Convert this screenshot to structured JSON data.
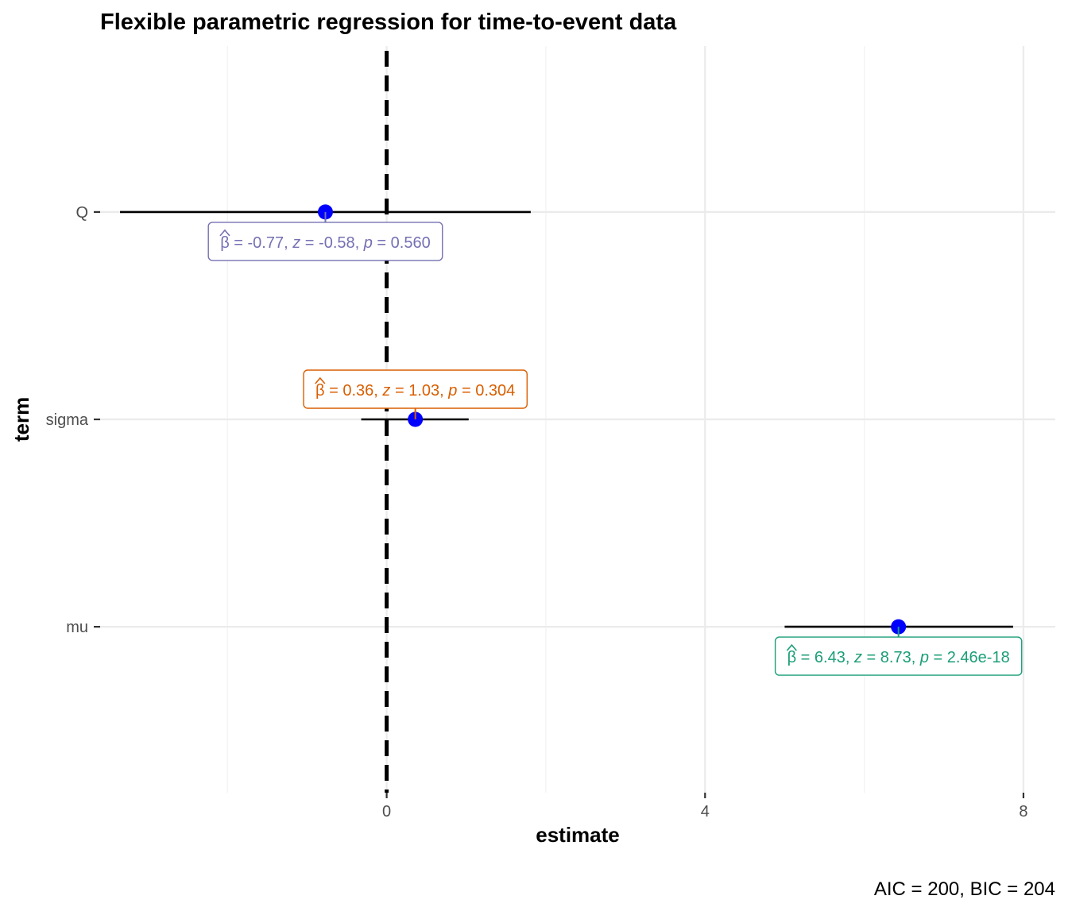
{
  "chart_data": {
    "type": "scatter",
    "title": "Flexible parametric regression for time-to-event data",
    "xlabel": "estimate",
    "ylabel": "term",
    "caption": "AIC = 200, BIC = 204",
    "xlim": [
      -3.6,
      8.4
    ],
    "x_ticks": [
      0,
      4,
      8
    ],
    "x_minor_ticks": [
      -2,
      2,
      6
    ],
    "reference_line": 0,
    "grid": true,
    "point_color": "#0000ff",
    "terms": [
      {
        "term": "mu",
        "estimate": 6.43,
        "conf_low": 5.0,
        "conf_high": 7.87,
        "label": {
          "beta": "6.43",
          "z": "8.73",
          "p": "2.46e-18",
          "color": "#1b9e77",
          "position": "below"
        }
      },
      {
        "term": "sigma",
        "estimate": 0.36,
        "conf_low": -0.32,
        "conf_high": 1.03,
        "label": {
          "beta": "0.36",
          "z": "1.03",
          "p": "0.304",
          "color": "#d95f02",
          "position": "above"
        }
      },
      {
        "term": "Q",
        "estimate": -0.77,
        "conf_low": -3.35,
        "conf_high": 1.81,
        "label": {
          "beta": "-0.77",
          "z": "-0.58",
          "p": "0.560",
          "color": "#7570b3",
          "position": "below"
        }
      }
    ]
  }
}
